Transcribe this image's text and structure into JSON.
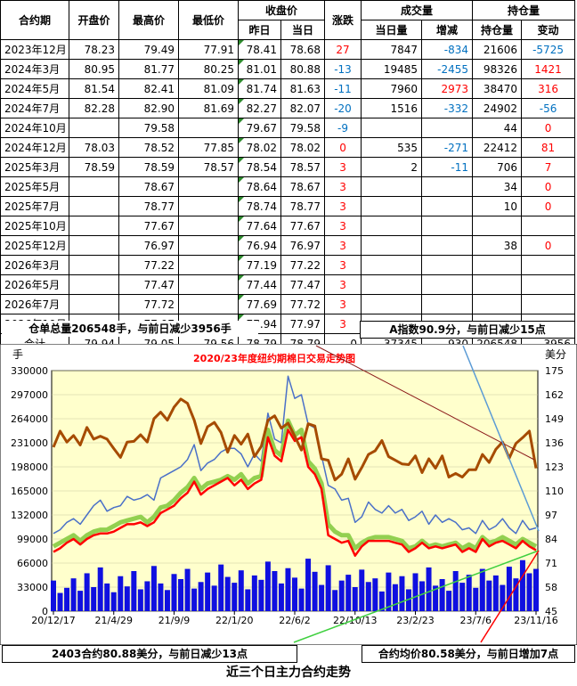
{
  "table": {
    "headers_top": [
      "合约期",
      "开盘价",
      "最高价",
      "最低价",
      "收盘价",
      "涨跌",
      "成交量",
      "持仓量"
    ],
    "headers_sub": [
      "昨日",
      "当日",
      "当日量",
      "增减",
      "持仓量",
      "变动"
    ],
    "rows": [
      {
        "contract": "2023年12月",
        "open": "78.23",
        "high": "79.49",
        "low": "77.91",
        "prev": "78.41",
        "close": "78.68",
        "chg": "27",
        "vol": "7847",
        "vchg": "-834",
        "oi": "21606",
        "oichg": "-5725"
      },
      {
        "contract": "2024年3月",
        "open": "80.95",
        "high": "81.77",
        "low": "80.25",
        "prev": "81.01",
        "close": "80.88",
        "chg": "-13",
        "vol": "19485",
        "vchg": "-2455",
        "oi": "98326",
        "oichg": "1421"
      },
      {
        "contract": "2024年5月",
        "open": "81.54",
        "high": "82.41",
        "low": "81.09",
        "prev": "81.74",
        "close": "81.63",
        "chg": "-11",
        "vol": "7960",
        "vchg": "2973",
        "oi": "38470",
        "oichg": "316"
      },
      {
        "contract": "2024年7月",
        "open": "82.28",
        "high": "82.90",
        "low": "81.69",
        "prev": "82.27",
        "close": "82.07",
        "chg": "-20",
        "vol": "1516",
        "vchg": "-332",
        "oi": "24902",
        "oichg": "-56"
      },
      {
        "contract": "2024年10月",
        "open": "",
        "high": "79.58",
        "low": "",
        "prev": "79.67",
        "close": "79.58",
        "chg": "-9",
        "vol": "",
        "vchg": "",
        "oi": "44",
        "oichg": "0"
      },
      {
        "contract": "2024年12月",
        "open": "78.03",
        "high": "78.52",
        "low": "77.85",
        "prev": "78.02",
        "close": "78.02",
        "chg": "0",
        "vol": "535",
        "vchg": "-271",
        "oi": "22412",
        "oichg": "81"
      },
      {
        "contract": "2025年3月",
        "open": "78.59",
        "high": "78.59",
        "low": "78.57",
        "prev": "78.54",
        "close": "78.57",
        "chg": "3",
        "vol": "2",
        "vchg": "-11",
        "oi": "706",
        "oichg": "7"
      },
      {
        "contract": "2025年5月",
        "open": "",
        "high": "78.67",
        "low": "",
        "prev": "78.64",
        "close": "78.67",
        "chg": "3",
        "vol": "",
        "vchg": "",
        "oi": "34",
        "oichg": "0"
      },
      {
        "contract": "2025年7月",
        "open": "",
        "high": "78.77",
        "low": "",
        "prev": "78.74",
        "close": "78.77",
        "chg": "3",
        "vol": "",
        "vchg": "",
        "oi": "10",
        "oichg": "0"
      },
      {
        "contract": "2025年10月",
        "open": "",
        "high": "77.67",
        "low": "",
        "prev": "77.64",
        "close": "77.67",
        "chg": "3",
        "vol": "",
        "vchg": "",
        "oi": "",
        "oichg": ""
      },
      {
        "contract": "2025年12月",
        "open": "",
        "high": "76.97",
        "low": "",
        "prev": "76.94",
        "close": "76.97",
        "chg": "3",
        "vol": "",
        "vchg": "",
        "oi": "38",
        "oichg": "0"
      },
      {
        "contract": "2026年3月",
        "open": "",
        "high": "77.22",
        "low": "",
        "prev": "77.19",
        "close": "77.22",
        "chg": "3",
        "vol": "",
        "vchg": "",
        "oi": "",
        "oichg": ""
      },
      {
        "contract": "2026年5月",
        "open": "",
        "high": "77.47",
        "low": "",
        "prev": "77.44",
        "close": "77.47",
        "chg": "3",
        "vol": "",
        "vchg": "",
        "oi": "",
        "oichg": ""
      },
      {
        "contract": "2026年7月",
        "open": "",
        "high": "77.72",
        "low": "",
        "prev": "77.69",
        "close": "77.72",
        "chg": "3",
        "vol": "",
        "vchg": "",
        "oi": "",
        "oichg": ""
      },
      {
        "contract": "2026年10月",
        "open": "",
        "high": "77.97",
        "low": "",
        "prev": "77.94",
        "close": "77.97",
        "chg": "3",
        "vol": "",
        "vchg": "",
        "oi": "",
        "oichg": ""
      }
    ],
    "total": {
      "label": "合计",
      "open": "79.94",
      "high": "79.05",
      "low": "79.56",
      "prev": "78.79",
      "close": "78.79",
      "chg": "0",
      "vol": "37345",
      "vchg": "-930",
      "oi": "206548",
      "oichg": "-3956"
    }
  },
  "notes": {
    "warehouse": "仓单总量206548手，与前日减少3956手",
    "a_index": "A指数90.9分，与前日减少15点",
    "contract2403": "2403合约80.88美分，与前日减少13点",
    "avg_price": "合约均价80.58美分，与前日增加7点"
  },
  "caption": "近三个日主力合约走势",
  "chart_data": {
    "type": "line",
    "title": "2020/23年度纽约期棉日交易走势图",
    "ylabel_left": "手",
    "ylabel_right": "美分",
    "ylim_left": [
      0,
      330000
    ],
    "ylim_right": [
      45,
      175
    ],
    "yticks_left": [
      "330000",
      "297000",
      "264000",
      "231000",
      "198000",
      "165000",
      "132000",
      "99000",
      "66000",
      "33000",
      "0"
    ],
    "yticks_right": [
      "175",
      "162",
      "149",
      "136",
      "123",
      "110",
      "97",
      "84",
      "71",
      "58",
      "45"
    ],
    "xticks": [
      "20/12/17",
      "21/4/29",
      "21/9/9",
      "22/1/20",
      "22/6/2",
      "22/10/13",
      "23/2/23",
      "23/7/6",
      "23/11/16"
    ],
    "colors": {
      "oi": "#a64b00",
      "high": "#4a70c8",
      "price": "#ff0000",
      "avg": "#92d050",
      "vol": "#1010e0",
      "bg": "#ffffcc"
    },
    "x_ticks_index": [
      0,
      9,
      18,
      27,
      36,
      45,
      54,
      63,
      72
    ],
    "series": [
      {
        "key": "oi",
        "axis": "left",
        "values": [
          225000,
          247000,
          232000,
          241000,
          228000,
          252000,
          236000,
          240000,
          236000,
          223000,
          211000,
          232000,
          233000,
          242000,
          232000,
          264000,
          273000,
          262000,
          280000,
          291000,
          285000,
          262000,
          230000,
          253000,
          259000,
          245000,
          218000,
          241000,
          229000,
          243000,
          212000,
          226000,
          262000,
          268000,
          251000,
          258000,
          240000,
          221000,
          257000,
          254000,
          209000,
          207000,
          180000,
          188000,
          209000,
          181000,
          197000,
          215000,
          220000,
          234000,
          212000,
          207000,
          202000,
          201000,
          213000,
          190000,
          209000,
          196000,
          213000,
          184000,
          189000,
          184000,
          194000,
          194000,
          215000,
          204000,
          222000,
          232000,
          210000,
          230000,
          238000,
          247000,
          196000
        ]
      },
      {
        "key": "high",
        "axis": "right",
        "values": [
          87,
          89,
          93,
          95,
          92,
          97,
          102,
          105,
          99,
          101,
          102,
          107,
          105,
          106,
          108,
          105,
          117,
          119,
          121,
          123,
          127,
          135,
          121,
          125,
          127,
          131,
          133,
          133,
          130,
          123,
          130,
          126,
          152,
          138,
          136,
          172,
          160,
          162,
          146,
          144,
          129,
          113,
          111,
          105,
          106,
          93,
          96,
          104,
          100,
          98,
          102,
          98,
          100,
          94,
          96,
          99,
          92,
          97,
          93,
          95,
          93,
          89,
          90,
          87,
          94,
          89,
          91,
          95,
          90,
          87,
          94,
          89,
          90
        ]
      },
      {
        "key": "price",
        "axis": "right",
        "values": [
          77,
          79,
          82,
          84,
          81,
          84,
          86,
          87,
          87,
          88,
          90,
          92,
          92,
          93,
          91,
          93,
          98,
          100,
          102,
          106,
          109,
          115,
          108,
          111,
          113,
          115,
          117,
          113,
          116,
          111,
          114,
          116,
          139,
          129,
          126,
          143,
          137,
          139,
          123,
          119,
          111,
          86,
          84,
          82,
          83,
          75,
          80,
          83,
          83,
          83,
          83,
          82,
          81,
          77,
          79,
          82,
          79,
          80,
          79,
          80,
          81,
          77,
          79,
          77,
          84,
          80,
          82,
          83,
          81,
          79,
          83,
          80,
          78
        ]
      },
      {
        "key": "avg",
        "axis": "right",
        "values": [
          80,
          82,
          84,
          86,
          83,
          86,
          88,
          89,
          89,
          91,
          93,
          94,
          95,
          96,
          93,
          96,
          101,
          102,
          105,
          109,
          112,
          117,
          111,
          114,
          115,
          116,
          118,
          116,
          119,
          114,
          117,
          118,
          143,
          132,
          129,
          148,
          140,
          143,
          126,
          122,
          114,
          92,
          88,
          86,
          86,
          79,
          82,
          84,
          85,
          85,
          85,
          84,
          83,
          79,
          80,
          83,
          80,
          81,
          80,
          81,
          82,
          79,
          81,
          79,
          85,
          82,
          83,
          85,
          83,
          81,
          84,
          82,
          80
        ]
      },
      {
        "key": "vol",
        "axis": "left",
        "values": [
          42000,
          25000,
          32000,
          45000,
          28000,
          52000,
          33000,
          60000,
          38000,
          26000,
          48000,
          34000,
          55000,
          30000,
          41000,
          62000,
          38000,
          29000,
          51000,
          44000,
          58000,
          31000,
          40000,
          53000,
          35000,
          64000,
          47000,
          39000,
          56000,
          30000,
          49000,
          43000,
          68000,
          55000,
          38000,
          59000,
          46000,
          31000,
          72000,
          54000,
          36000,
          63000,
          29000,
          42000,
          50000,
          33000,
          57000,
          40000,
          45000,
          27000,
          53000,
          37000,
          48000,
          30000,
          52000,
          41000,
          60000,
          35000,
          44000,
          28000,
          55000,
          39000,
          50000,
          32000,
          58000,
          42000,
          49000,
          36000,
          61000,
          45000,
          70000,
          52000,
          58000
        ]
      }
    ]
  }
}
